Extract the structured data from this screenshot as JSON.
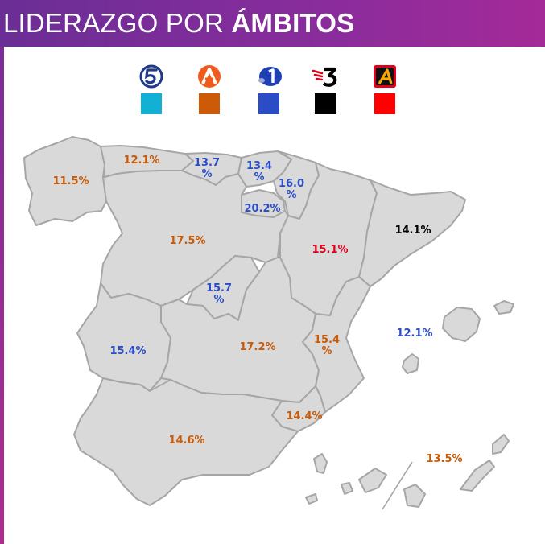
{
  "header": {
    "title_light": "LIDERAZGO POR ",
    "title_bold": "ÁMBITOS",
    "background": "#7a2d98"
  },
  "legend": [
    {
      "id": "telecinco",
      "icon": "telecinco-5-logo",
      "color": "#13b0d6"
    },
    {
      "id": "antena3",
      "icon": "antena3-logo",
      "color": "#cd5a06"
    },
    {
      "id": "la1",
      "icon": "la1-logo",
      "color": "#2a4cc7"
    },
    {
      "id": "tv3",
      "icon": "tv3-logo",
      "color": "#000000"
    },
    {
      "id": "autonomica",
      "icon": "autonomica-logo",
      "color": "#ff0000"
    }
  ],
  "regions": {
    "galicia": {
      "line1": "11.5%",
      "line2": "",
      "channel": "antena3"
    },
    "asturias": {
      "line1": "12.1%",
      "line2": "",
      "channel": "antena3"
    },
    "cantabria": {
      "line1": "13.7",
      "line2": "%",
      "channel": "la1"
    },
    "pais_vasco": {
      "line1": "13.4",
      "line2": "%",
      "channel": "la1"
    },
    "navarra": {
      "line1": "16.0",
      "line2": "%",
      "channel": "la1"
    },
    "la_rioja": {
      "line1": "20.2%",
      "line2": "",
      "channel": "la1"
    },
    "castilla_leon": {
      "line1": "17.5%",
      "line2": "",
      "channel": "antena3"
    },
    "aragon": {
      "line1": "15.1%",
      "line2": "",
      "channel": "autonomica"
    },
    "cataluna": {
      "line1": "14.1%",
      "line2": "",
      "channel": "tv3"
    },
    "madrid": {
      "line1": "15.7",
      "line2": "%",
      "channel": "la1"
    },
    "extremadura": {
      "line1": "15.4%",
      "line2": "",
      "channel": "la1"
    },
    "castilla_la_mancha": {
      "line1": "17.2%",
      "line2": "",
      "channel": "antena3"
    },
    "valencia": {
      "line1": "15.4",
      "line2": "%",
      "channel": "antena3"
    },
    "baleares": {
      "line1": "12.1%",
      "line2": "",
      "channel": "la1"
    },
    "murcia": {
      "line1": "14.4%",
      "line2": "",
      "channel": "antena3"
    },
    "andalucia": {
      "line1": "14.6%",
      "line2": "",
      "channel": "antena3"
    },
    "canarias": {
      "line1": "13.5%",
      "line2": "",
      "channel": "antena3"
    }
  }
}
